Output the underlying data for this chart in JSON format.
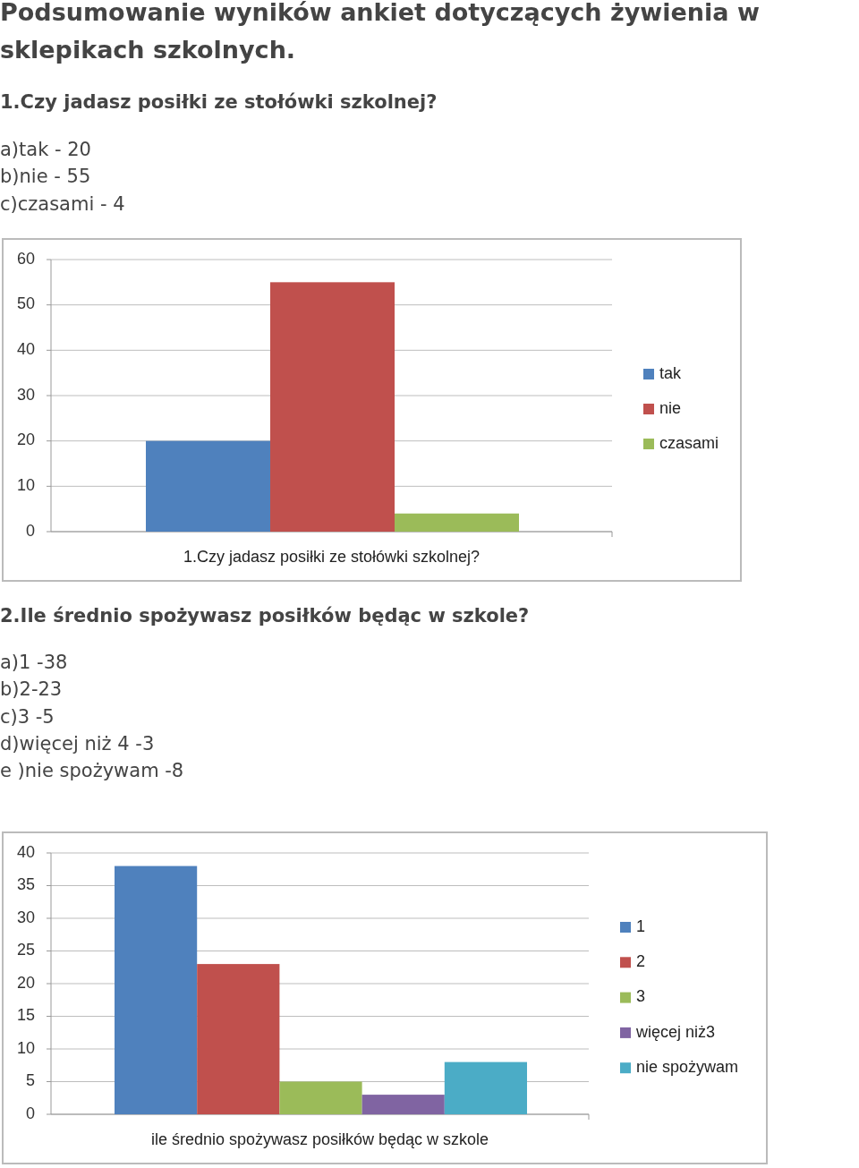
{
  "chart_data": [
    {
      "type": "bar",
      "title": "Podsumowanie wyników ankiet dotyczących żywienia w sklepikach szkolnych.",
      "subtitle": "1.Czy jadasz posiłki ze stołówki szkolnej?",
      "annotations": [
        "a)tak - 20",
        "b)nie - 55",
        "c)czasami - 4"
      ],
      "categories": [
        "1.Czy jadasz posiłki ze stołówki szkolnej?"
      ],
      "series": [
        {
          "name": "tak",
          "color": "#4f81bd",
          "values": [
            20
          ]
        },
        {
          "name": "nie",
          "color": "#c0504d",
          "values": [
            55
          ]
        },
        {
          "name": "czasami",
          "color": "#9bbb59",
          "values": [
            4
          ]
        }
      ],
      "ylim": [
        0,
        60
      ],
      "yticks": [
        0,
        10,
        20,
        30,
        40,
        50,
        60
      ],
      "grid": "y",
      "legend": "right"
    },
    {
      "type": "bar",
      "title": "2.Ile średnio spożywasz posiłków będąc w szkole?",
      "annotations": [
        "a)1 -38",
        "b)2-23",
        "c)3 -5",
        "d)więcej niż 4 -3",
        "e )nie spożywam -8"
      ],
      "categories": [
        "ile średnio spożywasz posiłków będąc w szkole"
      ],
      "series": [
        {
          "name": "1",
          "color": "#4f81bd",
          "values": [
            38
          ]
        },
        {
          "name": "2",
          "color": "#c0504d",
          "values": [
            23
          ]
        },
        {
          "name": "3",
          "color": "#9bbb59",
          "values": [
            5
          ]
        },
        {
          "name": "więcej niż3",
          "color": "#8064a2",
          "values": [
            3
          ]
        },
        {
          "name": "nie spożywam",
          "color": "#4bacc6",
          "values": [
            8
          ]
        }
      ],
      "ylim": [
        0,
        40
      ],
      "yticks": [
        0,
        5,
        10,
        15,
        20,
        25,
        30,
        35,
        40
      ],
      "grid": "y",
      "legend": "right"
    }
  ]
}
